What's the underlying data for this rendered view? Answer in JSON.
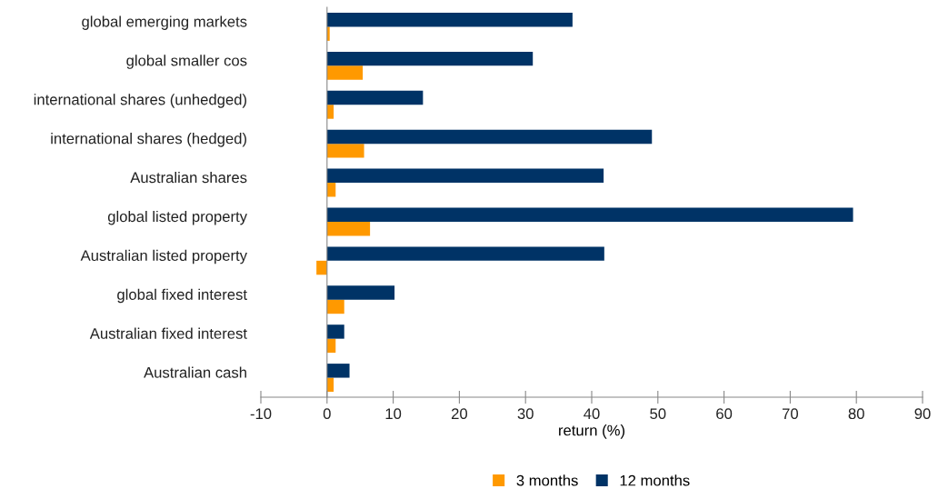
{
  "chart_data": {
    "type": "bar",
    "orientation": "horizontal",
    "xlabel": "return (%)",
    "categories": [
      "global emerging markets",
      "global smaller cos",
      "international shares (unhedged)",
      "international shares (hedged)",
      "Australian shares",
      "global listed property",
      "Australian listed property",
      "global fixed interest",
      "Australian fixed interest",
      "Australian cash"
    ],
    "series": [
      {
        "name": "3 months",
        "color": "#ff9900",
        "values": [
          0.4,
          5.4,
          1.0,
          5.6,
          1.3,
          6.5,
          -1.6,
          2.6,
          1.3,
          1.0
        ]
      },
      {
        "name": "12 months",
        "color": "#003366",
        "values": [
          37.1,
          31.1,
          14.5,
          49.1,
          41.8,
          79.5,
          41.9,
          10.2,
          2.6,
          3.4
        ]
      }
    ],
    "xlim": [
      -10,
      90
    ],
    "xticks": [
      -10,
      0,
      10,
      20,
      30,
      40,
      50,
      60,
      70,
      80,
      90
    ],
    "legend": "bottom"
  }
}
